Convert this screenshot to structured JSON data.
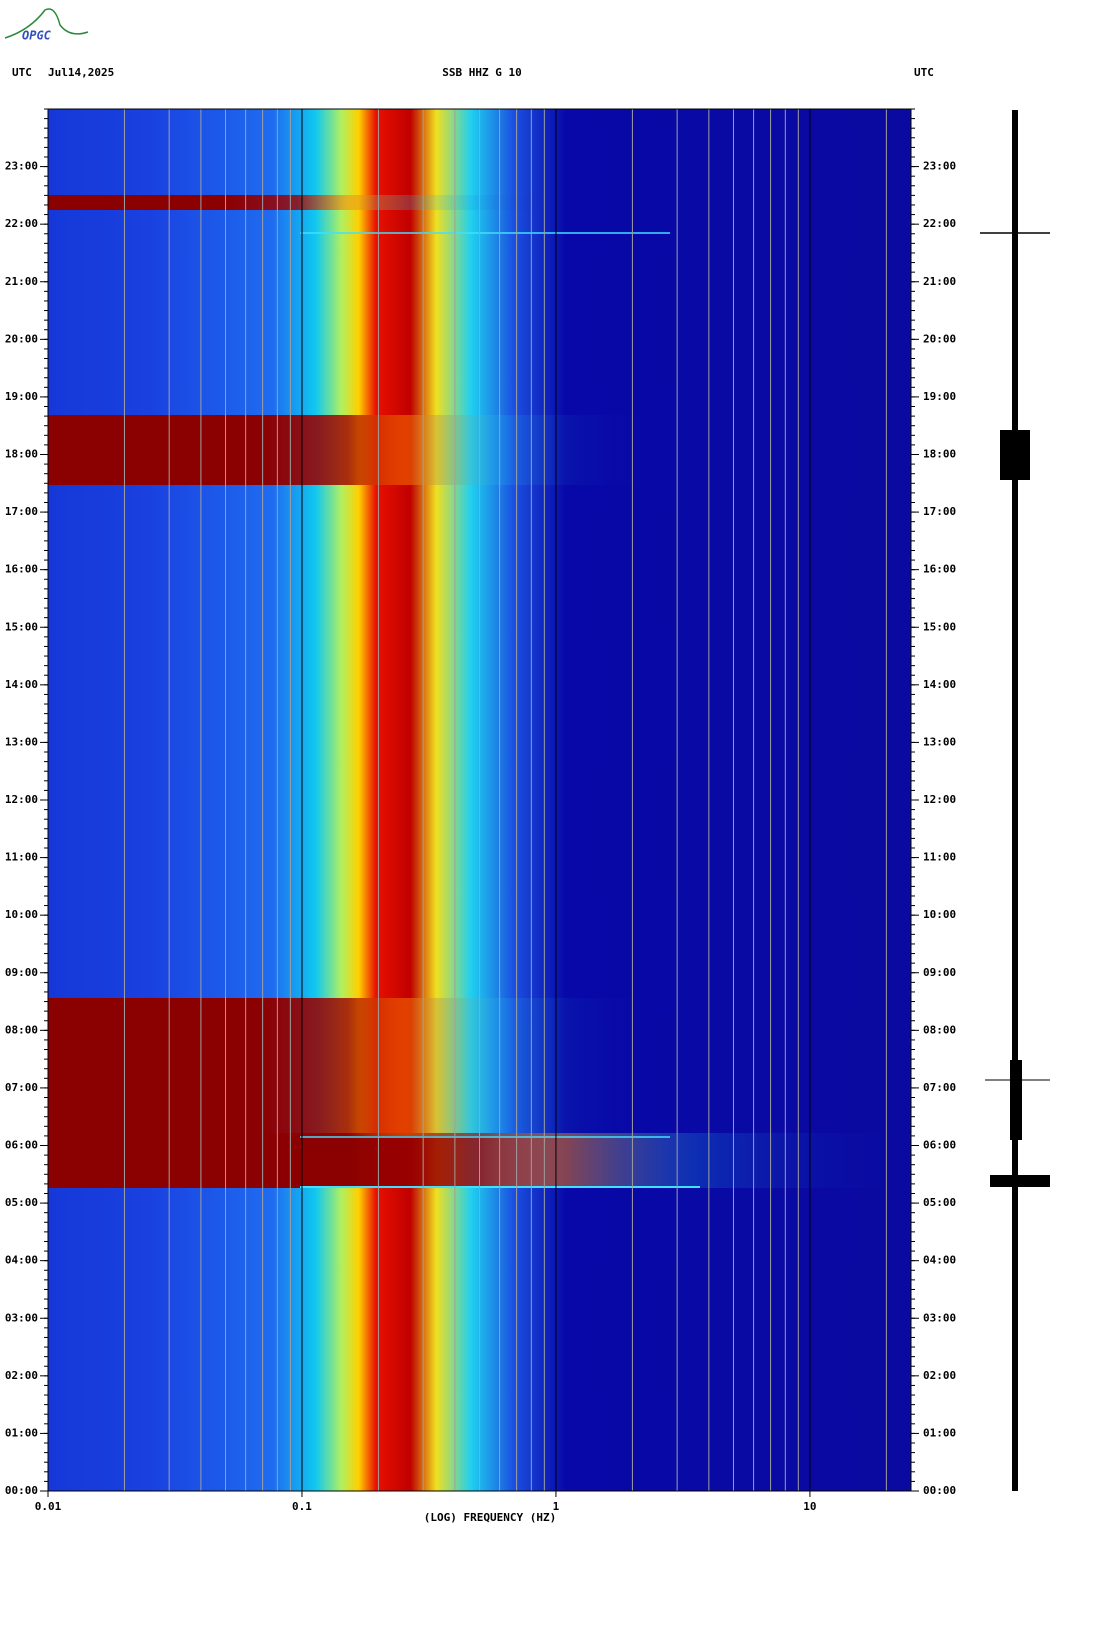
{
  "logo": "OPGC",
  "chart_data": {
    "type": "spectrogram",
    "header_left": "UTC",
    "date": "Jul14,2025",
    "title": "SSB HHZ G 10",
    "header_right": "UTC",
    "xlabel": "(LOG) FREQUENCY (HZ)",
    "xscale": "log",
    "xlim": [
      0.01,
      25
    ],
    "xticks": [
      0.01,
      0.1,
      1,
      10
    ],
    "ylim": [
      0,
      24
    ],
    "yticks": [
      {
        "value": 0,
        "label": "00:00"
      },
      {
        "value": 1,
        "label": "01:00"
      },
      {
        "value": 2,
        "label": "02:00"
      },
      {
        "value": 3,
        "label": "03:00"
      },
      {
        "value": 4,
        "label": "04:00"
      },
      {
        "value": 5,
        "label": "05:00"
      },
      {
        "value": 6,
        "label": "06:00"
      },
      {
        "value": 7,
        "label": "07:00"
      },
      {
        "value": 8,
        "label": "08:00"
      },
      {
        "value": 9,
        "label": "09:00"
      },
      {
        "value": 10,
        "label": "10:00"
      },
      {
        "value": 11,
        "label": "11:00"
      },
      {
        "value": 12,
        "label": "12:00"
      },
      {
        "value": 13,
        "label": "13:00"
      },
      {
        "value": 14,
        "label": "14:00"
      },
      {
        "value": 15,
        "label": "15:00"
      },
      {
        "value": 16,
        "label": "16:00"
      },
      {
        "value": 17,
        "label": "17:00"
      },
      {
        "value": 18,
        "label": "18:00"
      },
      {
        "value": 19,
        "label": "19:00"
      },
      {
        "value": 20,
        "label": "20:00"
      },
      {
        "value": 21,
        "label": "21:00"
      },
      {
        "value": 22,
        "label": "22:00"
      },
      {
        "value": 23,
        "label": "23:00"
      }
    ],
    "grid": true
  }
}
